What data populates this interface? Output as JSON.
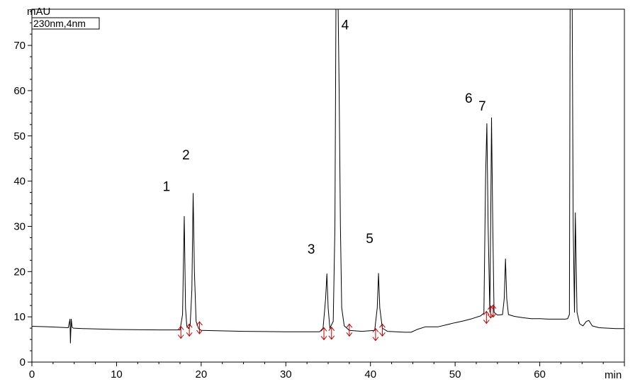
{
  "chart_data": {
    "type": "line",
    "title": "",
    "xlabel": "min",
    "ylabel": "mAU",
    "xlim": [
      0,
      70
    ],
    "ylim": [
      0,
      78
    ],
    "xticks": [
      0,
      10,
      20,
      30,
      40,
      50,
      60
    ],
    "yticks": [
      0,
      10,
      20,
      30,
      40,
      50,
      60,
      70
    ],
    "grid": false,
    "legend": {
      "position": "top-left",
      "entries": [
        "230nm,4nm"
      ]
    },
    "series": [
      {
        "name": "230nm,4nm",
        "color": "#000000",
        "x": [
          0,
          2,
          4.3,
          4.5,
          4.55,
          4.65,
          4.75,
          4.9,
          6,
          10,
          15,
          17.5,
          17.8,
          18.0,
          18.15,
          18.3,
          18.5,
          18.7,
          18.9,
          19.05,
          19.2,
          19.4,
          19.7,
          20,
          25,
          30,
          34,
          34.4,
          34.7,
          34.85,
          35.0,
          35.2,
          35.6,
          35.8,
          35.95,
          36.1,
          36.3,
          36.45,
          36.6,
          36.9,
          37.5,
          39,
          40.5,
          40.8,
          40.95,
          41.1,
          41.4,
          42,
          44,
          44.8,
          45.5,
          46.5,
          48,
          50,
          51,
          52,
          53,
          53.4,
          53.6,
          53.75,
          53.9,
          54.1,
          54.2,
          54.3,
          54.45,
          54.6,
          55,
          55.6,
          55.8,
          55.95,
          56.1,
          56.3,
          57,
          58,
          59,
          60,
          61,
          62,
          63,
          63.3,
          63.5,
          63.6,
          63.8,
          63.95,
          64.1,
          64.2,
          64.4,
          64.7,
          65.1,
          65.5,
          65.8,
          66.2,
          67,
          68,
          69,
          70
        ],
        "y": [
          7.9,
          7.8,
          7.6,
          9.5,
          4.2,
          9.5,
          7.7,
          7.5,
          7.4,
          7.2,
          7.1,
          7.1,
          10.5,
          32.2,
          12.0,
          8.0,
          7.4,
          8.2,
          16,
          37.3,
          20.0,
          9.0,
          7.4,
          7.0,
          6.8,
          6.7,
          6.7,
          7.5,
          14.0,
          19.5,
          12.0,
          7.5,
          9.0,
          30.0,
          90,
          90,
          60,
          30,
          12.0,
          8.0,
          7.0,
          6.8,
          7.0,
          12.0,
          19.6,
          12.0,
          7.5,
          6.8,
          6.6,
          6.6,
          7.2,
          7.8,
          7.8,
          8.7,
          9.1,
          9.6,
          10.2,
          10.8,
          41.0,
          52.7,
          30.0,
          11.0,
          30.0,
          54.0,
          30.0,
          11.0,
          10.4,
          10.5,
          14.0,
          22.8,
          14.0,
          10.5,
          10.1,
          9.8,
          9.6,
          9.6,
          9.5,
          9.5,
          9.5,
          9.6,
          10.5,
          90,
          90,
          30,
          11,
          33.0,
          11.0,
          8.5,
          8.0,
          9.0,
          9.2,
          8.0,
          7.6,
          7.5,
          7.4,
          7.4
        ]
      }
    ],
    "peak_labels": [
      {
        "label": "1",
        "x": 15.9,
        "y": 37.8
      },
      {
        "label": "2",
        "x": 18.2,
        "y": 44.8
      },
      {
        "label": "3",
        "x": 33.0,
        "y": 24.0
      },
      {
        "label": "4",
        "x": 37.0,
        "y": 73.5
      },
      {
        "label": "5",
        "x": 39.9,
        "y": 26.3
      },
      {
        "label": "6",
        "x": 51.6,
        "y": 57.3
      },
      {
        "label": "7",
        "x": 53.2,
        "y": 55.6
      }
    ],
    "integration_marks": [
      {
        "x": 17.6,
        "y": 6.5
      },
      {
        "x": 18.6,
        "y": 7.0
      },
      {
        "x": 19.8,
        "y": 7.5
      },
      {
        "x": 34.5,
        "y": 6.2
      },
      {
        "x": 35.4,
        "y": 6.3
      },
      {
        "x": 37.5,
        "y": 7.0
      },
      {
        "x": 40.6,
        "y": 6.0
      },
      {
        "x": 41.4,
        "y": 7.0
      },
      {
        "x": 53.7,
        "y": 9.8
      },
      {
        "x": 54.2,
        "y": 11.0
      },
      {
        "x": 54.5,
        "y": 11.2
      }
    ],
    "colors": {
      "trace": "#000000",
      "marks": "#c00000",
      "axes": "#000000"
    }
  }
}
